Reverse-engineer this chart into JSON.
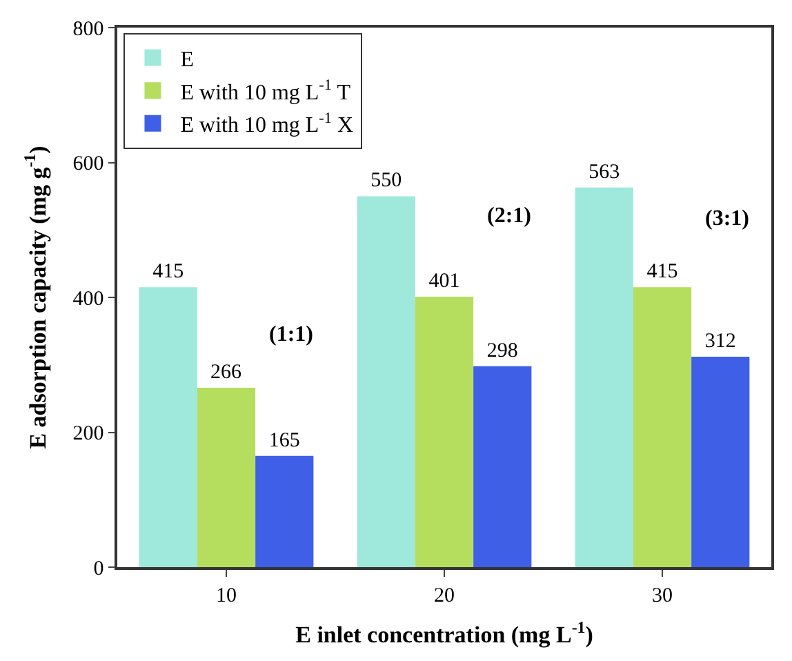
{
  "chart_data": {
    "type": "bar",
    "categories": [
      "10",
      "20",
      "30"
    ],
    "series": [
      {
        "name": "E",
        "color": "#9ee9dc",
        "values": [
          415,
          550,
          563
        ]
      },
      {
        "name": "E with 10 mg L$^{-1}$ T",
        "color": "#b5dd5e",
        "values": [
          266,
          401,
          415
        ]
      },
      {
        "name": "E with 10 mg L$^{-1}$ X",
        "color": "#3f5fe6",
        "values": [
          165,
          298,
          312
        ]
      }
    ],
    "xlabel": "E inlet concentration (mg L$^{-1}$)",
    "ylabel": "E adsorption capacity (mg g$^{-1}$)",
    "ylim": [
      0,
      800
    ],
    "yticks": [
      0,
      200,
      400,
      600,
      800
    ],
    "data_labels": true,
    "legend": "top left",
    "annotations": [
      "(1:1)",
      "(2:1)",
      "(3:1)"
    ]
  }
}
